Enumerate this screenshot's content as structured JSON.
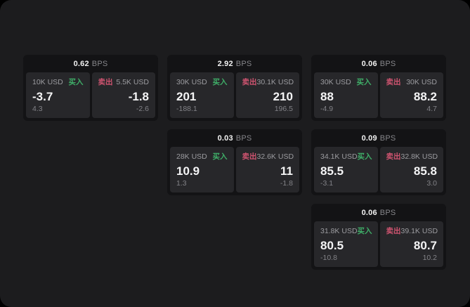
{
  "labels": {
    "buy": "买入",
    "sell": "卖出",
    "bps_unit": "BPS"
  },
  "colors": {
    "buy": "#3fae68",
    "sell": "#cf5470",
    "page_bg": "#1c1c1e",
    "card_bg": "#131315",
    "panel_bg": "#27272a",
    "backdrop": "#000000"
  },
  "cards": [
    {
      "row": 1,
      "col": 1,
      "bps": "0.62",
      "buy": {
        "amount": "10K USD",
        "value": "-3.7",
        "sub": "4.3"
      },
      "sell": {
        "amount": "5.5K USD",
        "value": "-1.8",
        "sub": "-2.6"
      }
    },
    {
      "row": 1,
      "col": 2,
      "bps": "2.92",
      "buy": {
        "amount": "30K USD",
        "value": "201",
        "sub": "-188.1"
      },
      "sell": {
        "amount": "30.1K USD",
        "value": "210",
        "sub": "196.5"
      }
    },
    {
      "row": 1,
      "col": 3,
      "bps": "0.06",
      "buy": {
        "amount": "30K USD",
        "value": "88",
        "sub": "-4.9"
      },
      "sell": {
        "amount": "30K USD",
        "value": "88.2",
        "sub": "4.7"
      }
    },
    {
      "row": 2,
      "col": 2,
      "bps": "0.03",
      "buy": {
        "amount": "28K USD",
        "value": "10.9",
        "sub": "1.3"
      },
      "sell": {
        "amount": "32.6K USD",
        "value": "11",
        "sub": "-1.8"
      }
    },
    {
      "row": 2,
      "col": 3,
      "bps": "0.09",
      "buy": {
        "amount": "34.1K USD",
        "value": "85.5",
        "sub": "-3.1"
      },
      "sell": {
        "amount": "32.8K USD",
        "value": "85.8",
        "sub": "3.0"
      }
    },
    {
      "row": 3,
      "col": 3,
      "bps": "0.06",
      "buy": {
        "amount": "31.8K USD",
        "value": "80.5",
        "sub": "-10.8"
      },
      "sell": {
        "amount": "39.1K USD",
        "value": "80.7",
        "sub": "10.2"
      }
    }
  ]
}
